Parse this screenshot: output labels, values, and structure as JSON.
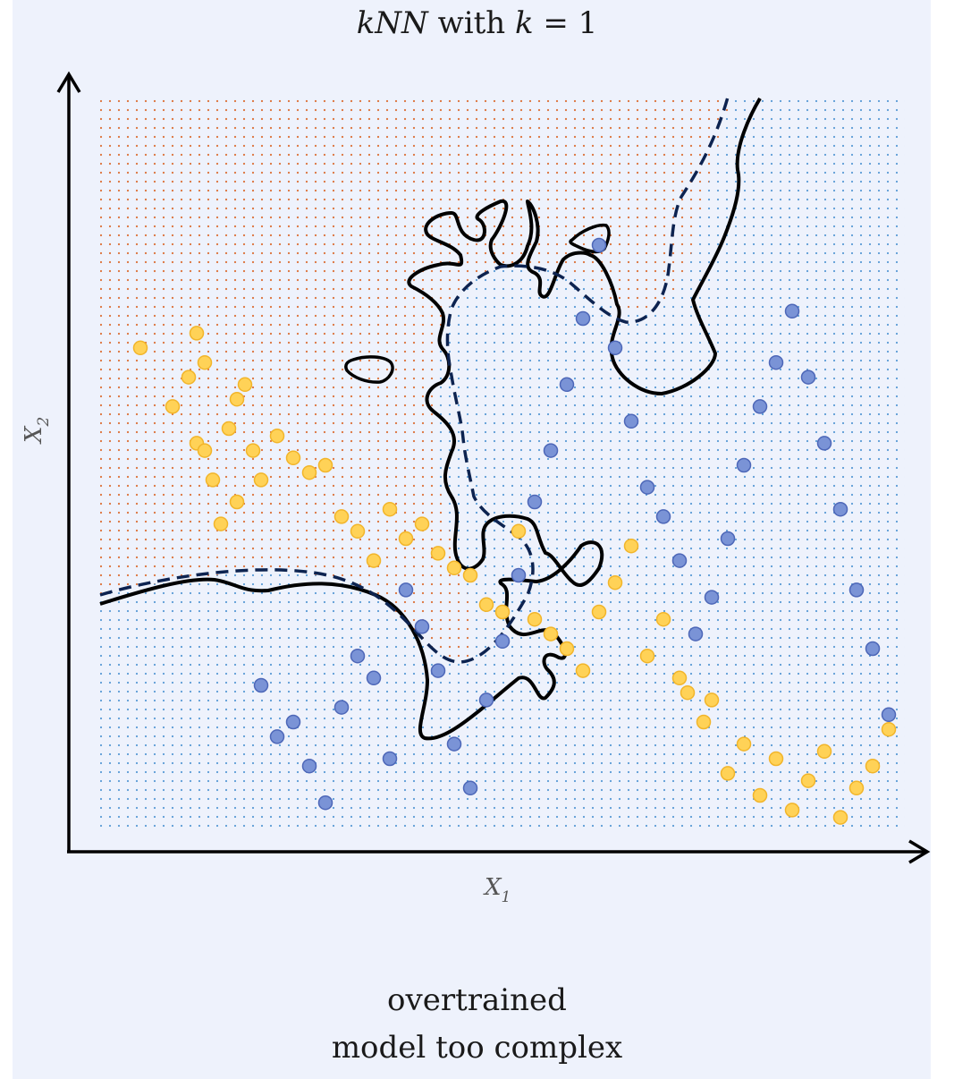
{
  "title": {
    "prefix": "kNN",
    "middle": " with ",
    "var": "k",
    "suffix": " = 1"
  },
  "caption": {
    "line1": "overtrained",
    "line2": "model too complex"
  },
  "axes": {
    "x_label": "X",
    "x_sub": "1",
    "y_label": "X",
    "y_sub": "2"
  },
  "colors": {
    "background": "#eef2fc",
    "orange_region_dots": "#e8763a",
    "blue_region_dots": "#5b9bd5",
    "orange_class_fill": "#ffd257",
    "orange_class_stroke": "#f2b52a",
    "blue_class_fill": "#7a93d6",
    "blue_class_stroke": "#4d67b8",
    "knn_boundary": "#000000",
    "true_boundary": "#0d2350"
  },
  "chart_data": {
    "type": "scatter",
    "legend": "none",
    "grid": "dotted background indicating predicted class region",
    "series": [
      {
        "class": "orange",
        "points": [
          [
            0.05,
            0.66
          ],
          [
            0.09,
            0.58
          ],
          [
            0.11,
            0.62
          ],
          [
            0.12,
            0.53
          ],
          [
            0.13,
            0.52
          ],
          [
            0.14,
            0.48
          ],
          [
            0.16,
            0.55
          ],
          [
            0.17,
            0.45
          ],
          [
            0.15,
            0.42
          ],
          [
            0.12,
            0.68
          ],
          [
            0.13,
            0.64
          ],
          [
            0.17,
            0.59
          ],
          [
            0.18,
            0.61
          ],
          [
            0.19,
            0.52
          ],
          [
            0.2,
            0.48
          ],
          [
            0.22,
            0.54
          ],
          [
            0.24,
            0.51
          ],
          [
            0.26,
            0.49
          ],
          [
            0.28,
            0.5
          ],
          [
            0.3,
            0.43
          ],
          [
            0.32,
            0.41
          ],
          [
            0.34,
            0.37
          ],
          [
            0.36,
            0.44
          ],
          [
            0.38,
            0.4
          ],
          [
            0.4,
            0.42
          ],
          [
            0.42,
            0.38
          ],
          [
            0.44,
            0.36
          ],
          [
            0.46,
            0.35
          ],
          [
            0.48,
            0.31
          ],
          [
            0.5,
            0.3
          ],
          [
            0.52,
            0.41
          ],
          [
            0.54,
            0.29
          ],
          [
            0.56,
            0.27
          ],
          [
            0.58,
            0.25
          ],
          [
            0.6,
            0.22
          ],
          [
            0.62,
            0.3
          ],
          [
            0.64,
            0.34
          ],
          [
            0.66,
            0.39
          ],
          [
            0.68,
            0.24
          ],
          [
            0.7,
            0.29
          ],
          [
            0.72,
            0.21
          ],
          [
            0.73,
            0.19
          ],
          [
            0.75,
            0.15
          ],
          [
            0.76,
            0.18
          ],
          [
            0.78,
            0.08
          ],
          [
            0.8,
            0.12
          ],
          [
            0.82,
            0.05
          ],
          [
            0.84,
            0.1
          ],
          [
            0.86,
            0.03
          ],
          [
            0.88,
            0.07
          ],
          [
            0.9,
            0.11
          ],
          [
            0.92,
            0.02
          ],
          [
            0.94,
            0.06
          ],
          [
            0.96,
            0.09
          ],
          [
            0.98,
            0.14
          ]
        ]
      },
      {
        "class": "blue",
        "points": [
          [
            0.2,
            0.2
          ],
          [
            0.22,
            0.13
          ],
          [
            0.24,
            0.15
          ],
          [
            0.26,
            0.09
          ],
          [
            0.28,
            0.04
          ],
          [
            0.3,
            0.17
          ],
          [
            0.32,
            0.24
          ],
          [
            0.34,
            0.21
          ],
          [
            0.36,
            0.1
          ],
          [
            0.38,
            0.33
          ],
          [
            0.4,
            0.28
          ],
          [
            0.42,
            0.22
          ],
          [
            0.44,
            0.12
          ],
          [
            0.46,
            0.06
          ],
          [
            0.48,
            0.18
          ],
          [
            0.5,
            0.26
          ],
          [
            0.52,
            0.35
          ],
          [
            0.54,
            0.45
          ],
          [
            0.56,
            0.52
          ],
          [
            0.58,
            0.61
          ],
          [
            0.6,
            0.7
          ],
          [
            0.62,
            0.8
          ],
          [
            0.64,
            0.66
          ],
          [
            0.66,
            0.56
          ],
          [
            0.68,
            0.47
          ],
          [
            0.7,
            0.43
          ],
          [
            0.72,
            0.37
          ],
          [
            0.74,
            0.27
          ],
          [
            0.76,
            0.32
          ],
          [
            0.78,
            0.4
          ],
          [
            0.8,
            0.5
          ],
          [
            0.82,
            0.58
          ],
          [
            0.84,
            0.64
          ],
          [
            0.86,
            0.71
          ],
          [
            0.88,
            0.62
          ],
          [
            0.9,
            0.53
          ],
          [
            0.92,
            0.44
          ],
          [
            0.94,
            0.33
          ],
          [
            0.96,
            0.25
          ],
          [
            0.98,
            0.16
          ]
        ]
      }
    ],
    "boundaries": [
      {
        "name": "kNN boundary",
        "style": "solid"
      },
      {
        "name": "true boundary",
        "style": "dashed"
      }
    ]
  }
}
